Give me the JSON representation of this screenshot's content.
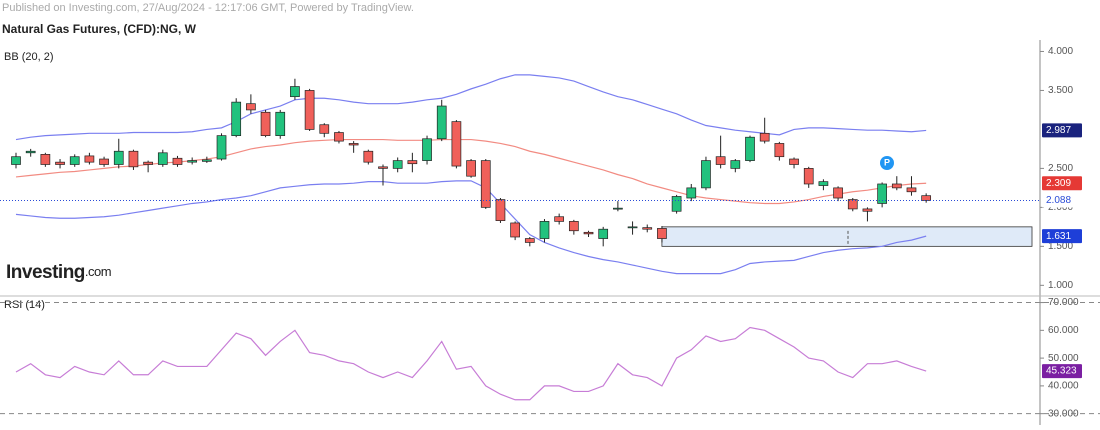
{
  "header": "Published on Investing.com, 27/Aug/2024 - 12:17:06 GMT, Powered by TradingView.",
  "logo": {
    "brand": "Investing",
    "suffix": ".com"
  },
  "chart_data": [
    {
      "type": "candlestick",
      "title": "Natural Gas Futures, (CFD):NG, W",
      "indicator": "BB (20, 2)",
      "up_color": "#22c27e",
      "down_color": "#f0605a",
      "open": [
        2.55,
        2.7,
        2.68,
        2.58,
        2.55,
        2.66,
        2.62,
        2.55,
        2.72,
        2.58,
        2.55,
        2.63,
        2.58,
        2.59,
        2.62,
        2.92,
        3.33,
        3.22,
        2.92,
        3.42,
        3.5,
        3.06,
        2.96,
        2.82,
        2.72,
        2.52,
        2.5,
        2.6,
        2.6,
        2.88,
        3.1,
        2.6,
        2.6,
        2.1,
        1.8,
        1.6,
        1.6,
        1.88,
        1.82,
        1.68,
        1.6,
        1.98,
        1.74,
        1.74,
        1.73,
        1.95,
        2.12,
        2.25,
        2.65,
        2.5,
        2.6,
        2.95,
        2.82,
        2.62,
        2.5,
        2.28,
        2.25,
        2.1,
        1.98,
        2.05,
        2.3,
        2.25,
        2.15
      ],
      "high": [
        2.7,
        2.75,
        2.7,
        2.62,
        2.68,
        2.7,
        2.65,
        2.88,
        2.74,
        2.6,
        2.74,
        2.66,
        2.64,
        2.65,
        2.95,
        3.4,
        3.45,
        3.25,
        3.25,
        3.65,
        3.52,
        3.08,
        2.98,
        2.85,
        2.74,
        2.55,
        2.64,
        2.7,
        2.92,
        3.38,
        3.12,
        2.62,
        2.62,
        2.12,
        1.82,
        1.62,
        1.85,
        1.92,
        1.84,
        1.7,
        1.75,
        2.08,
        1.82,
        1.78,
        1.76,
        2.16,
        2.3,
        2.65,
        2.92,
        2.62,
        2.92,
        3.15,
        2.84,
        2.64,
        2.52,
        2.36,
        2.27,
        2.12,
        2.0,
        2.32,
        2.4,
        2.4,
        2.18
      ],
      "low": [
        2.5,
        2.65,
        2.52,
        2.5,
        2.52,
        2.55,
        2.52,
        2.5,
        2.48,
        2.45,
        2.52,
        2.52,
        2.55,
        2.57,
        2.6,
        2.9,
        3.2,
        2.9,
        2.88,
        3.38,
        2.98,
        2.9,
        2.82,
        2.7,
        2.55,
        2.28,
        2.45,
        2.45,
        2.55,
        2.85,
        2.5,
        2.38,
        1.98,
        1.8,
        1.58,
        1.5,
        1.55,
        1.78,
        1.65,
        1.62,
        1.5,
        1.95,
        1.65,
        1.68,
        1.55,
        1.92,
        2.08,
        2.22,
        2.5,
        2.45,
        2.58,
        2.82,
        2.6,
        2.5,
        2.25,
        2.22,
        2.08,
        1.95,
        1.82,
        2.0,
        2.22,
        2.15,
        2.06
      ],
      "close": [
        2.65,
        2.72,
        2.55,
        2.55,
        2.65,
        2.58,
        2.55,
        2.72,
        2.52,
        2.55,
        2.7,
        2.55,
        2.6,
        2.61,
        2.92,
        3.35,
        3.25,
        2.92,
        3.22,
        3.55,
        3.0,
        2.95,
        2.85,
        2.8,
        2.58,
        2.5,
        2.6,
        2.56,
        2.88,
        3.3,
        2.53,
        2.4,
        2.0,
        1.83,
        1.62,
        1.55,
        1.82,
        1.82,
        1.7,
        1.66,
        1.72,
        1.99,
        1.75,
        1.72,
        1.6,
        2.14,
        2.25,
        2.6,
        2.55,
        2.6,
        2.9,
        2.85,
        2.65,
        2.55,
        2.3,
        2.33,
        2.12,
        1.98,
        1.95,
        2.3,
        2.25,
        2.2,
        2.088
      ],
      "bands": [
        {
          "color": "#7a7ff0",
          "values": [
            2.87,
            2.9,
            2.92,
            2.93,
            2.94,
            2.95,
            2.95,
            2.95,
            2.96,
            2.96,
            2.96,
            2.96,
            2.97,
            3.0,
            3.02,
            3.1,
            3.2,
            3.25,
            3.3,
            3.38,
            3.4,
            3.4,
            3.38,
            3.35,
            3.33,
            3.33,
            3.33,
            3.35,
            3.38,
            3.4,
            3.45,
            3.52,
            3.58,
            3.65,
            3.7,
            3.7,
            3.68,
            3.66,
            3.62,
            3.55,
            3.48,
            3.42,
            3.38,
            3.32,
            3.26,
            3.2,
            3.12,
            3.05,
            3.02,
            2.99,
            2.97,
            2.95,
            2.93,
            3.0,
            3.02,
            3.02,
            3.01,
            3.0,
            2.99,
            2.99,
            2.98,
            2.97,
            2.987
          ],
          "label_bg": "#1a237e"
        },
        {
          "color": "#f28b82",
          "values": [
            2.39,
            2.41,
            2.43,
            2.45,
            2.46,
            2.48,
            2.5,
            2.52,
            2.53,
            2.55,
            2.57,
            2.58,
            2.6,
            2.62,
            2.65,
            2.7,
            2.75,
            2.78,
            2.8,
            2.83,
            2.85,
            2.86,
            2.87,
            2.87,
            2.87,
            2.87,
            2.86,
            2.86,
            2.86,
            2.87,
            2.87,
            2.87,
            2.85,
            2.82,
            2.78,
            2.72,
            2.68,
            2.63,
            2.58,
            2.53,
            2.48,
            2.42,
            2.37,
            2.3,
            2.25,
            2.2,
            2.15,
            2.12,
            2.1,
            2.08,
            2.06,
            2.05,
            2.05,
            2.07,
            2.1,
            2.14,
            2.17,
            2.2,
            2.22,
            2.25,
            2.28,
            2.3,
            2.309
          ],
          "label_bg": "#e53935"
        },
        {
          "color": "#7a7ff0",
          "values": [
            1.91,
            1.89,
            1.87,
            1.86,
            1.86,
            1.87,
            1.88,
            1.9,
            1.93,
            1.96,
            1.99,
            2.02,
            2.05,
            2.07,
            2.1,
            2.12,
            2.15,
            2.2,
            2.25,
            2.27,
            2.29,
            2.3,
            2.3,
            2.31,
            2.33,
            2.33,
            2.31,
            2.31,
            2.31,
            2.33,
            2.34,
            2.34,
            2.25,
            2.05,
            1.85,
            1.65,
            1.55,
            1.48,
            1.42,
            1.37,
            1.33,
            1.3,
            1.26,
            1.22,
            1.18,
            1.15,
            1.15,
            1.15,
            1.15,
            1.2,
            1.28,
            1.3,
            1.31,
            1.32,
            1.37,
            1.42,
            1.45,
            1.47,
            1.48,
            1.5,
            1.55,
            1.58,
            1.631
          ],
          "label_bg": "#1e3fd8"
        }
      ],
      "range_box": {
        "low": 1.5,
        "high": 1.75
      },
      "marker_label": "P",
      "ylim": [
        0.94,
        4.07
      ],
      "yticks": [
        {
          "value": 4,
          "label": "4.000"
        },
        {
          "value": 3.5,
          "label": "3.500"
        },
        {
          "value": 2.5,
          "label": "2.500"
        },
        {
          "value": 2,
          "label": "2.000"
        },
        {
          "value": 1.5,
          "label": "1.500"
        },
        {
          "value": 1,
          "label": "1.000"
        }
      ]
    },
    {
      "type": "line",
      "title": "RSI (14)",
      "color": "#c77dd6",
      "values": [
        45,
        48,
        44,
        43,
        47,
        45,
        44,
        49,
        44,
        44,
        49,
        47,
        47,
        47,
        53,
        59,
        57,
        51,
        56,
        60,
        52,
        51,
        49,
        48,
        45,
        43,
        45,
        43,
        49,
        56,
        46,
        47,
        40,
        37,
        35,
        35,
        40,
        40,
        38,
        38,
        40,
        48,
        44,
        43,
        40,
        50,
        53,
        58,
        56,
        57,
        61,
        60,
        57,
        54,
        50,
        49,
        45,
        43,
        48,
        48,
        49,
        47,
        45.323
      ],
      "ylim": [
        27,
        72
      ],
      "yticks": [
        {
          "value": 70,
          "label": "70.000"
        },
        {
          "value": 60,
          "label": "60.000"
        },
        {
          "value": 50,
          "label": "50.000"
        },
        {
          "value": 40,
          "label": "40.000"
        },
        {
          "value": 30,
          "label": "30.000"
        }
      ]
    }
  ]
}
